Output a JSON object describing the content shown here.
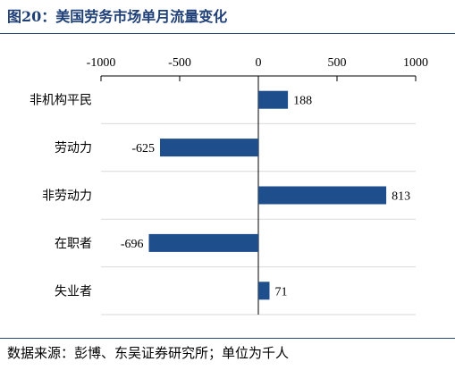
{
  "title": "图20：美国劳务市场单月流量变化",
  "source": "数据来源：彭博、东吴证券研究所；单位为千人",
  "colors": {
    "bar": "#1f4e8c",
    "title": "#1f3f77",
    "rule": "#2b4a7f",
    "grid": "#d9d9d9"
  },
  "chart_data": {
    "type": "bar",
    "orientation": "horizontal",
    "categories": [
      "非机构平民",
      "劳动力",
      "非劳动力",
      "在职者",
      "失业者"
    ],
    "values": [
      188,
      -625,
      813,
      -696,
      71
    ],
    "data_labels": [
      "188",
      "-625",
      "813",
      "-696",
      "71"
    ],
    "xlim": [
      -1000,
      1000
    ],
    "xticks": [
      -1000,
      -500,
      0,
      500,
      1000
    ],
    "xtick_labels": [
      "-1000",
      "-500",
      "0",
      "500",
      "1000"
    ],
    "xaxis_position": "top",
    "grid": "horizontal",
    "legend": "none"
  }
}
